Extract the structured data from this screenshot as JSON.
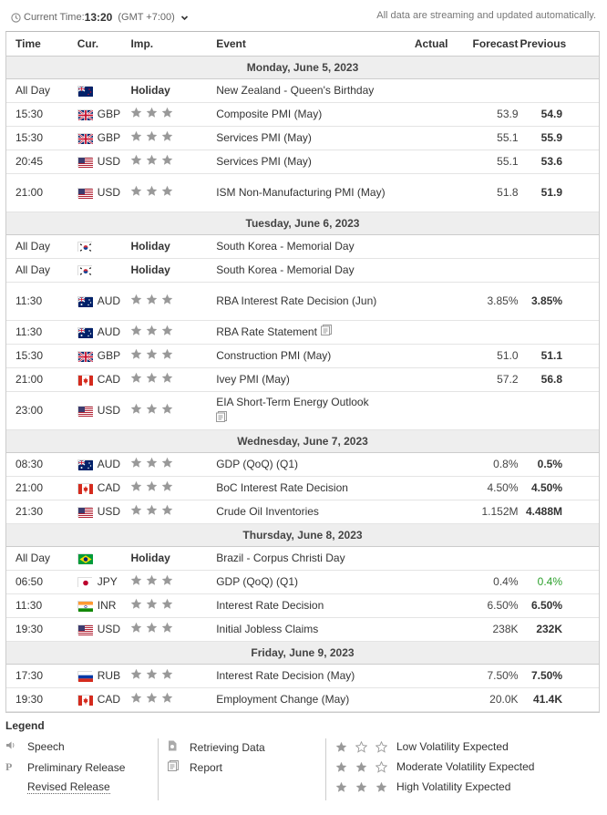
{
  "header": {
    "current_time_label": "Current Time:",
    "current_time": "13:20",
    "timezone": "(GMT +7:00)",
    "notice": "All data are streaming and updated automatically."
  },
  "columns": {
    "time": "Time",
    "currency": "Cur.",
    "importance": "Imp.",
    "event": "Event",
    "actual": "Actual",
    "forecast": "Forecast",
    "previous": "Previous"
  },
  "colors": {
    "star": "#999999",
    "day_bg": "#eeeeee",
    "positive": "#2ca02c",
    "border": "#cccccc"
  },
  "days": [
    {
      "date": "Monday, June 5, 2023",
      "events": [
        {
          "time": "All Day",
          "flag": "NZ",
          "cur": "",
          "imp": "Holiday",
          "event": "New Zealand - Queen's Birthday",
          "actual": "",
          "forecast": "",
          "previous": ""
        },
        {
          "time": "15:30",
          "flag": "GB",
          "cur": "GBP",
          "imp_stars": 3,
          "event": "Composite PMI (May)",
          "actual": "",
          "forecast": "53.9",
          "previous": "54.9"
        },
        {
          "time": "15:30",
          "flag": "GB",
          "cur": "GBP",
          "imp_stars": 3,
          "event": "Services PMI (May)",
          "actual": "",
          "forecast": "55.1",
          "previous": "55.9"
        },
        {
          "time": "20:45",
          "flag": "US",
          "cur": "USD",
          "imp_stars": 3,
          "event": "Services PMI (May)",
          "actual": "",
          "forecast": "55.1",
          "previous": "53.6"
        },
        {
          "time": "21:00",
          "flag": "US",
          "cur": "USD",
          "imp_stars": 3,
          "event": "ISM Non-Manufacturing PMI (May)",
          "actual": "",
          "forecast": "51.8",
          "previous": "51.9",
          "tall": true
        }
      ]
    },
    {
      "date": "Tuesday, June 6, 2023",
      "events": [
        {
          "time": "All Day",
          "flag": "KR",
          "cur": "",
          "imp": "Holiday",
          "event": "South Korea - Memorial Day",
          "actual": "",
          "forecast": "",
          "previous": ""
        },
        {
          "time": "All Day",
          "flag": "KR",
          "cur": "",
          "imp": "Holiday",
          "event": "South Korea - Memorial Day",
          "actual": "",
          "forecast": "",
          "previous": ""
        },
        {
          "time": "11:30",
          "flag": "AU",
          "cur": "AUD",
          "imp_stars": 3,
          "event": "RBA Interest Rate Decision (Jun)",
          "actual": "",
          "forecast": "3.85%",
          "previous": "3.85%",
          "tall": true
        },
        {
          "time": "11:30",
          "flag": "AU",
          "cur": "AUD",
          "imp_stars": 3,
          "event": "RBA Rate Statement",
          "report": true,
          "actual": "",
          "forecast": "",
          "previous": ""
        },
        {
          "time": "15:30",
          "flag": "GB",
          "cur": "GBP",
          "imp_stars": 3,
          "event": "Construction PMI (May)",
          "actual": "",
          "forecast": "51.0",
          "previous": "51.1"
        },
        {
          "time": "21:00",
          "flag": "CA",
          "cur": "CAD",
          "imp_stars": 3,
          "event": "Ivey PMI (May)",
          "actual": "",
          "forecast": "57.2",
          "previous": "56.8"
        },
        {
          "time": "23:00",
          "flag": "US",
          "cur": "USD",
          "imp_stars": 3,
          "event": "EIA Short-Term Energy Outlook",
          "report_block": true,
          "actual": "",
          "forecast": "",
          "previous": "",
          "tall": true
        }
      ]
    },
    {
      "date": "Wednesday, June 7, 2023",
      "events": [
        {
          "time": "08:30",
          "flag": "AU",
          "cur": "AUD",
          "imp_stars": 3,
          "event": "GDP (QoQ) (Q1)",
          "actual": "",
          "forecast": "0.8%",
          "previous": "0.5%"
        },
        {
          "time": "21:00",
          "flag": "CA",
          "cur": "CAD",
          "imp_stars": 3,
          "event": "BoC Interest Rate Decision",
          "actual": "",
          "forecast": "4.50%",
          "previous": "4.50%"
        },
        {
          "time": "21:30",
          "flag": "US",
          "cur": "USD",
          "imp_stars": 3,
          "event": "Crude Oil Inventories",
          "actual": "",
          "forecast": "1.152M",
          "previous": "4.488M"
        }
      ]
    },
    {
      "date": "Thursday, June 8, 2023",
      "events": [
        {
          "time": "All Day",
          "flag": "BR",
          "cur": "",
          "imp": "Holiday",
          "event": "Brazil - Corpus Christi Day",
          "actual": "",
          "forecast": "",
          "previous": ""
        },
        {
          "time": "06:50",
          "flag": "JP",
          "cur": "JPY",
          "imp_stars": 3,
          "event": "GDP (QoQ) (Q1)",
          "actual": "",
          "forecast": "0.4%",
          "previous": "0.4%",
          "previous_green": true
        },
        {
          "time": "11:30",
          "flag": "IN",
          "cur": "INR",
          "imp_stars": 3,
          "event": "Interest Rate Decision",
          "actual": "",
          "forecast": "6.50%",
          "previous": "6.50%"
        },
        {
          "time": "19:30",
          "flag": "US",
          "cur": "USD",
          "imp_stars": 3,
          "event": "Initial Jobless Claims",
          "actual": "",
          "forecast": "238K",
          "previous": "232K"
        }
      ]
    },
    {
      "date": "Friday, June 9, 2023",
      "events": [
        {
          "time": "17:30",
          "flag": "RU",
          "cur": "RUB",
          "imp_stars": 3,
          "event": "Interest Rate Decision (May)",
          "actual": "",
          "forecast": "7.50%",
          "previous": "7.50%"
        },
        {
          "time": "19:30",
          "flag": "CA",
          "cur": "CAD",
          "imp_stars": 3,
          "event": "Employment Change (May)",
          "actual": "",
          "forecast": "20.0K",
          "previous": "41.4K"
        }
      ]
    }
  ],
  "legend": {
    "title": "Legend",
    "speech": "Speech",
    "preliminary": "Preliminary Release",
    "preliminary_symbol": "P",
    "revised": "Revised Release",
    "retrieving": "Retrieving Data",
    "report": "Report",
    "low": "Low Volatility Expected",
    "moderate": "Moderate Volatility Expected",
    "high": "High Volatility Expected"
  }
}
